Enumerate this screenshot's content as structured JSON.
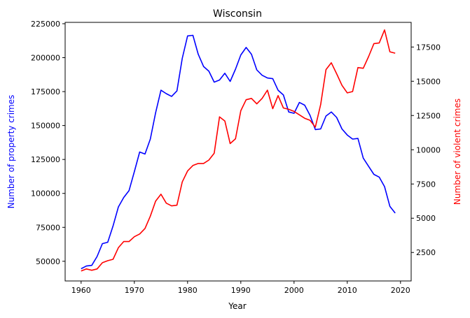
{
  "chart_data": {
    "type": "line",
    "title": "Wisconsin",
    "xlabel": "Year",
    "ylabel_left": "Number of property crimes",
    "ylabel_right": "Number of violent crimes",
    "xlim": [
      1957,
      2022
    ],
    "ylim_left": [
      35500,
      226000
    ],
    "ylim_right": [
      420,
      19300
    ],
    "x_ticks": [
      1960,
      1970,
      1980,
      1990,
      2000,
      2010,
      2020
    ],
    "y_ticks_left": [
      50000,
      75000,
      100000,
      125000,
      150000,
      175000,
      200000,
      225000
    ],
    "y_ticks_right": [
      2500,
      5000,
      7500,
      10000,
      12500,
      15000,
      17500
    ],
    "grid": false,
    "colors": {
      "left": "#0000ff",
      "right": "#ff0000",
      "axis": "#000000"
    },
    "x": [
      1960,
      1961,
      1962,
      1963,
      1964,
      1965,
      1966,
      1967,
      1968,
      1969,
      1970,
      1971,
      1972,
      1973,
      1974,
      1975,
      1976,
      1977,
      1978,
      1979,
      1980,
      1981,
      1982,
      1983,
      1984,
      1985,
      1986,
      1987,
      1988,
      1989,
      1990,
      1991,
      1992,
      1993,
      1994,
      1995,
      1996,
      1997,
      1998,
      1999,
      2000,
      2001,
      2002,
      2003,
      2004,
      2005,
      2006,
      2007,
      2008,
      2009,
      2010,
      2011,
      2012,
      2013,
      2014,
      2015,
      2016,
      2017,
      2018,
      2019
    ],
    "series": [
      {
        "name": "Number of property crimes",
        "axis": "left",
        "values": [
          44500,
          46500,
          47000,
          53500,
          63000,
          64000,
          76000,
          90000,
          97000,
          102000,
          116000,
          130500,
          129000,
          140000,
          159500,
          176000,
          173500,
          171500,
          175500,
          199500,
          216000,
          216500,
          202500,
          193500,
          190000,
          182000,
          183500,
          188500,
          182500,
          191500,
          202000,
          207500,
          202500,
          191000,
          187000,
          185000,
          184500,
          176000,
          172500,
          160000,
          159000,
          167000,
          165000,
          157500,
          147000,
          147500,
          157000,
          160000,
          156000,
          147500,
          143000,
          140000,
          140500,
          126000,
          120000,
          114000,
          112000,
          105000,
          90500,
          85500
        ]
      },
      {
        "name": "Number of violent crimes",
        "axis": "right",
        "values": [
          1150,
          1300,
          1200,
          1300,
          1750,
          1900,
          2000,
          2850,
          3300,
          3300,
          3650,
          3850,
          4250,
          5150,
          6250,
          6750,
          6100,
          5900,
          5950,
          7650,
          8450,
          8850,
          9000,
          9000,
          9250,
          9750,
          12400,
          12100,
          10450,
          10800,
          12850,
          13650,
          13750,
          13350,
          13750,
          14350,
          13000,
          13950,
          13050,
          12950,
          12800,
          12550,
          12300,
          12150,
          11650,
          13300,
          15850,
          16350,
          15550,
          14700,
          14150,
          14250,
          16000,
          15950,
          16800,
          17750,
          17800,
          18750,
          17150,
          17050
        ]
      }
    ]
  }
}
